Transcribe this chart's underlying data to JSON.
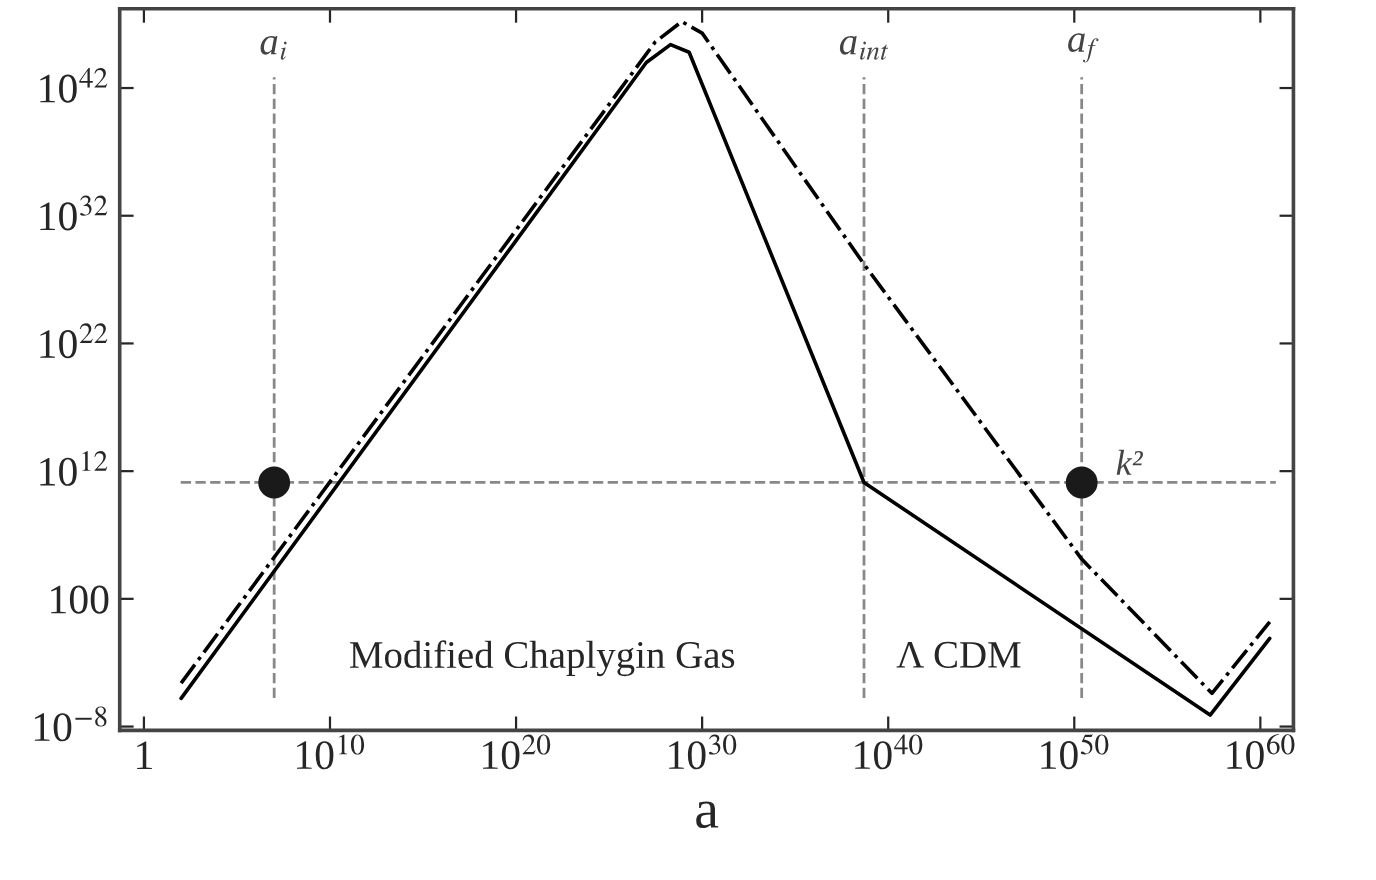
{
  "chart_data": {
    "type": "line",
    "xlabel": "a",
    "log": "xy",
    "grid": false,
    "legend": false,
    "xlim": [
      0.05,
      6e+61
    ],
    "ylim": [
      5e-09,
      1.6e+48
    ],
    "xticks": [
      {
        "value": 1,
        "label": "1"
      },
      {
        "value": 10000000000.0,
        "label": "10$^{10}$"
      },
      {
        "value": 1e+20,
        "label": "10$^{20}$"
      },
      {
        "value": 1e+30,
        "label": "10$^{30}$"
      },
      {
        "value": 1e+40,
        "label": "10$^{40}$"
      },
      {
        "value": 1e+50,
        "label": "10$^{50}$"
      },
      {
        "value": 1e+60,
        "label": "10$^{60}$"
      }
    ],
    "yticks": [
      {
        "value": 1e-08,
        "label": "10$^{−8}$"
      },
      {
        "value": 100,
        "label": "100"
      },
      {
        "value": 1000000000000.0,
        "label": "10$^{12}$"
      },
      {
        "value": 1e+22,
        "label": "10$^{22}$"
      },
      {
        "value": 1e+32,
        "label": "10$^{32}$"
      },
      {
        "value": 1e+42,
        "label": "10$^{42}$"
      }
    ],
    "series": [
      {
        "color": "#000000",
        "line_style": "solid",
        "marker": "none",
        "x": [
          100.0,
          1e+27,
          2e+28,
          2e+29,
          5e+38,
          2e+57,
          3.2e+60
        ],
        "values": [
          1.6e-06,
          1e+44,
          2.5e+45,
          6.3e+44,
          130000000000.0,
          8e-08,
          0.08
        ]
      },
      {
        "color": "#000000",
        "line_style": "dashdot",
        "marker": "none",
        "x": [
          100.0,
          3e+27,
          8e+28,
          1e+30,
          5e+38,
          2.5e+50,
          2.5e+57,
          3.2e+60
        ],
        "values": [
          2.5e-05,
          4e+45,
          1.6e+47,
          2e+46,
          1.6e+28,
          130000.0,
          4e-06,
          1.6
        ]
      },
      {
        "type": "scatter",
        "color": "#1a1a1a",
        "marker": "circle",
        "x": [
          10000000.0,
          2.5e+50
        ],
        "values": [
          130000000000.0,
          130000000000.0
        ]
      }
    ],
    "ref_lines": [
      {
        "axis": "x",
        "value": 10000000.0,
        "label": "a$_{i}$",
        "color": "#888888",
        "line_style": "dashed"
      },
      {
        "axis": "x",
        "value": 5e+38,
        "label": "a$_{int}$",
        "color": "#888888",
        "line_style": "dashed"
      },
      {
        "axis": "x",
        "value": 2.5e+50,
        "label": "a$_{f}$",
        "color": "#888888",
        "line_style": "dashed"
      },
      {
        "axis": "y",
        "value": 130000000000.0,
        "label": "k²",
        "color": "#888888",
        "line_style": "dashed"
      }
    ],
    "annotations": [
      "Modified Chaplygin Gas",
      "Λ CDM"
    ]
  }
}
